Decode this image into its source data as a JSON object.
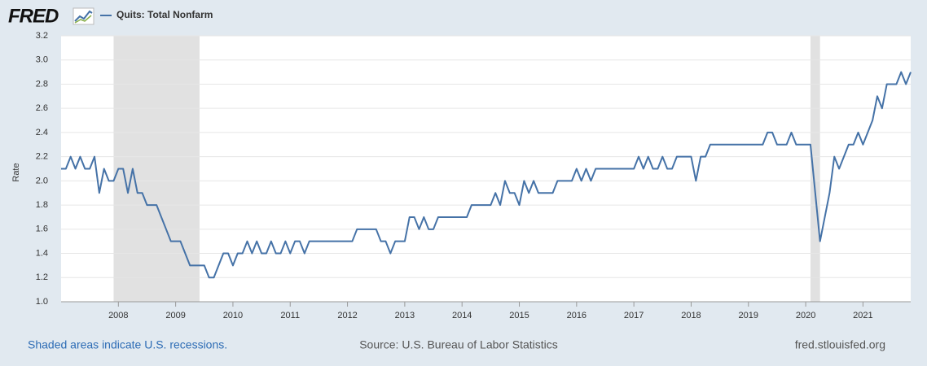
{
  "logo": "FRED",
  "chart_data": {
    "type": "line",
    "ylabel": "Rate",
    "series": [
      {
        "name": "Quits: Total Nonfarm",
        "color": "#4572a7",
        "values": [
          2.1,
          2.1,
          2.2,
          2.1,
          2.2,
          2.1,
          2.1,
          2.2,
          1.9,
          2.1,
          2.0,
          2.0,
          2.1,
          2.1,
          1.9,
          2.1,
          1.9,
          1.9,
          1.8,
          1.8,
          1.8,
          1.7,
          1.6,
          1.5,
          1.5,
          1.5,
          1.4,
          1.3,
          1.3,
          1.3,
          1.3,
          1.2,
          1.2,
          1.3,
          1.4,
          1.4,
          1.3,
          1.4,
          1.4,
          1.5,
          1.4,
          1.5,
          1.4,
          1.4,
          1.5,
          1.4,
          1.4,
          1.5,
          1.4,
          1.5,
          1.5,
          1.4,
          1.5,
          1.5,
          1.5,
          1.5,
          1.5,
          1.5,
          1.5,
          1.5,
          1.5,
          1.5,
          1.6,
          1.6,
          1.6,
          1.6,
          1.6,
          1.5,
          1.5,
          1.4,
          1.5,
          1.5,
          1.5,
          1.7,
          1.7,
          1.6,
          1.7,
          1.6,
          1.6,
          1.7,
          1.7,
          1.7,
          1.7,
          1.7,
          1.7,
          1.7,
          1.8,
          1.8,
          1.8,
          1.8,
          1.8,
          1.9,
          1.8,
          2.0,
          1.9,
          1.9,
          1.8,
          2.0,
          1.9,
          2.0,
          1.9,
          1.9,
          1.9,
          1.9,
          2.0,
          2.0,
          2.0,
          2.0,
          2.1,
          2.0,
          2.1,
          2.0,
          2.1,
          2.1,
          2.1,
          2.1,
          2.1,
          2.1,
          2.1,
          2.1,
          2.1,
          2.2,
          2.1,
          2.2,
          2.1,
          2.1,
          2.2,
          2.1,
          2.1,
          2.2,
          2.2,
          2.2,
          2.2,
          2.0,
          2.2,
          2.2,
          2.3,
          2.3,
          2.3,
          2.3,
          2.3,
          2.3,
          2.3,
          2.3,
          2.3,
          2.3,
          2.3,
          2.3,
          2.4,
          2.4,
          2.3,
          2.3,
          2.3,
          2.4,
          2.3,
          2.3,
          2.3,
          2.3,
          1.9,
          1.5,
          1.7,
          1.9,
          2.2,
          2.1,
          2.2,
          2.3,
          2.3,
          2.4,
          2.3,
          2.4,
          2.5,
          2.7,
          2.6,
          2.8,
          2.8,
          2.8,
          2.9,
          2.8,
          2.9
        ]
      }
    ],
    "x": [
      "2007-01",
      "2007-02",
      "2007-03",
      "2007-04",
      "2007-05",
      "2007-06",
      "2007-07",
      "2007-08",
      "2007-09",
      "2007-10",
      "2007-11",
      "2007-12",
      "2008-01",
      "2008-02",
      "2008-03",
      "2008-04",
      "2008-05",
      "2008-06",
      "2008-07",
      "2008-08",
      "2008-09",
      "2008-10",
      "2008-11",
      "2008-12",
      "2009-01",
      "2009-02",
      "2009-03",
      "2009-04",
      "2009-05",
      "2009-06",
      "2009-07",
      "2009-08",
      "2009-09",
      "2009-10",
      "2009-11",
      "2009-12",
      "2010-01",
      "2010-02",
      "2010-03",
      "2010-04",
      "2010-05",
      "2010-06",
      "2010-07",
      "2010-08",
      "2010-09",
      "2010-10",
      "2010-11",
      "2010-12",
      "2011-01",
      "2011-02",
      "2011-03",
      "2011-04",
      "2011-05",
      "2011-06",
      "2011-07",
      "2011-08",
      "2011-09",
      "2011-10",
      "2011-11",
      "2011-12",
      "2012-01",
      "2012-02",
      "2012-03",
      "2012-04",
      "2012-05",
      "2012-06",
      "2012-07",
      "2012-08",
      "2012-09",
      "2012-10",
      "2012-11",
      "2012-12",
      "2013-01",
      "2013-02",
      "2013-03",
      "2013-04",
      "2013-05",
      "2013-06",
      "2013-07",
      "2013-08",
      "2013-09",
      "2013-10",
      "2013-11",
      "2013-12",
      "2014-01",
      "2014-02",
      "2014-03",
      "2014-04",
      "2014-05",
      "2014-06",
      "2014-07",
      "2014-08",
      "2014-09",
      "2014-10",
      "2014-11",
      "2014-12",
      "2015-01",
      "2015-02",
      "2015-03",
      "2015-04",
      "2015-05",
      "2015-06",
      "2015-07",
      "2015-08",
      "2015-09",
      "2015-10",
      "2015-11",
      "2015-12",
      "2016-01",
      "2016-02",
      "2016-03",
      "2016-04",
      "2016-05",
      "2016-06",
      "2016-07",
      "2016-08",
      "2016-09",
      "2016-10",
      "2016-11",
      "2016-12",
      "2017-01",
      "2017-02",
      "2017-03",
      "2017-04",
      "2017-05",
      "2017-06",
      "2017-07",
      "2017-08",
      "2017-09",
      "2017-10",
      "2017-11",
      "2017-12",
      "2018-01",
      "2018-02",
      "2018-03",
      "2018-04",
      "2018-05",
      "2018-06",
      "2018-07",
      "2018-08",
      "2018-09",
      "2018-10",
      "2018-11",
      "2018-12",
      "2019-01",
      "2019-02",
      "2019-03",
      "2019-04",
      "2019-05",
      "2019-06",
      "2019-07",
      "2019-08",
      "2019-09",
      "2019-10",
      "2019-11",
      "2019-12",
      "2020-01",
      "2020-02",
      "2020-03",
      "2020-04",
      "2020-05",
      "2020-06",
      "2020-07",
      "2020-08",
      "2020-09",
      "2020-10",
      "2020-11",
      "2020-12",
      "2021-01",
      "2021-02",
      "2021-03",
      "2021-04",
      "2021-05",
      "2021-06",
      "2021-07",
      "2021-08",
      "2021-09",
      "2021-10",
      "2021-11"
    ],
    "xlim": [
      "2007-01",
      "2021-11"
    ],
    "xticks": [
      2008,
      2009,
      2010,
      2011,
      2012,
      2013,
      2014,
      2015,
      2016,
      2017,
      2018,
      2019,
      2020,
      2021
    ],
    "ylim": [
      1,
      3.2
    ],
    "yticks": [
      {
        "value": 1,
        "label": "1.0"
      },
      1.2,
      1.4,
      1.6,
      1.8,
      {
        "value": 2,
        "label": "2.0"
      },
      2.2,
      2.4,
      2.6,
      2.8,
      {
        "value": 3,
        "label": "3.0"
      },
      3.2
    ],
    "grid": true,
    "recessions": [
      [
        "2007-12",
        "2009-06"
      ],
      [
        "2020-02",
        "2020-04"
      ]
    ],
    "notes": [
      "Shaded areas indicate U.S. recessions.",
      "Source: U.S. Bureau of Labor Statistics",
      "fred.stlouisfed.org"
    ]
  }
}
